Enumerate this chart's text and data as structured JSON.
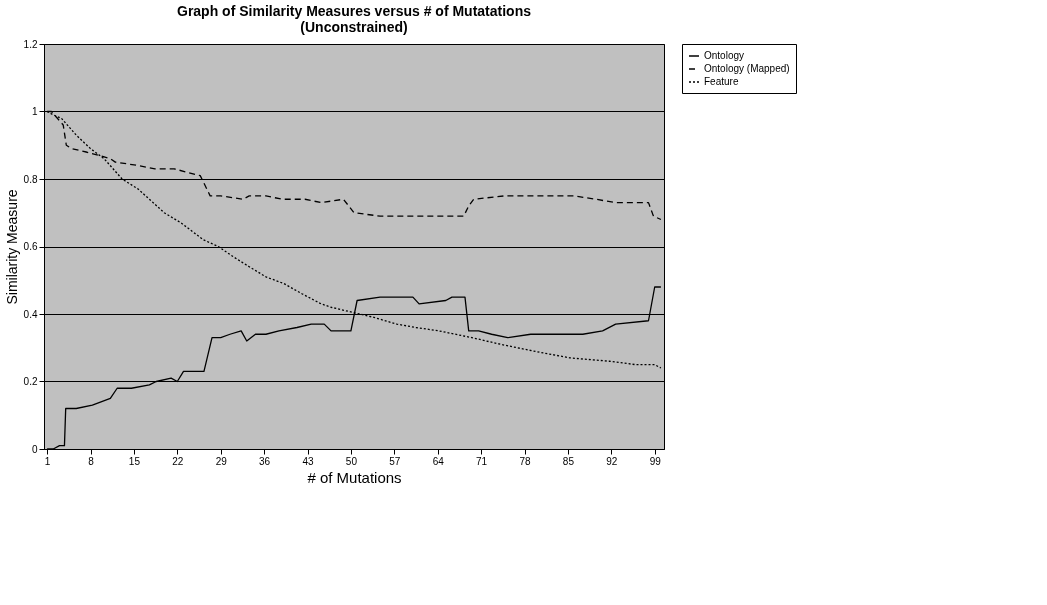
{
  "chart_data": {
    "type": "line",
    "title": "Graph of Similarity Measures versus # of Mutatations\n(Unconstrained)",
    "xlabel": "# of Mutations",
    "ylabel": "Similarity Measure",
    "xlim": [
      0.5,
      100.5
    ],
    "xticks": [
      1,
      8,
      15,
      22,
      29,
      36,
      43,
      50,
      57,
      64,
      71,
      78,
      85,
      92,
      99
    ],
    "ylim": [
      0,
      1.2
    ],
    "yticks": [
      0,
      0.2,
      0.4,
      0.6,
      0.8,
      1,
      1.2
    ],
    "grid": "y",
    "legend": "right",
    "marker": "none",
    "series": [
      {
        "name": "Ontology",
        "color": "#000000",
        "line_style": "solid",
        "x": [
          1,
          2,
          3,
          3.8,
          4,
          5.7,
          8.3,
          11.2,
          12.3,
          14.6,
          17.5,
          18.6,
          21,
          22,
          23,
          26.3,
          27.6,
          29,
          30.5,
          32.3,
          33.2,
          34.6,
          36.3,
          38.4,
          41.3,
          43.6,
          45.7,
          46.8,
          49.4,
          50,
          51,
          54.7,
          60,
          61,
          65.3,
          66.3,
          68.4,
          69,
          70.6,
          72.7,
          75.3,
          79,
          87.4,
          90.6,
          92.7,
          98,
          99,
          100
        ],
        "values": [
          0,
          0,
          0.01,
          0.01,
          0.12,
          0.12,
          0.13,
          0.15,
          0.18,
          0.18,
          0.19,
          0.2,
          0.21,
          0.2,
          0.23,
          0.23,
          0.33,
          0.33,
          0.34,
          0.35,
          0.32,
          0.34,
          0.34,
          0.35,
          0.36,
          0.37,
          0.37,
          0.35,
          0.35,
          0.35,
          0.44,
          0.45,
          0.45,
          0.43,
          0.44,
          0.45,
          0.45,
          0.35,
          0.35,
          0.34,
          0.33,
          0.34,
          0.34,
          0.35,
          0.37,
          0.38,
          0.48,
          0.48
        ]
      },
      {
        "name": "Ontology (Mapped)",
        "color": "#000000",
        "line_style": "dashed",
        "x": [
          1,
          1.7,
          3.6,
          4.1,
          5,
          7.3,
          9.4,
          11.2,
          12,
          15.7,
          18.4,
          21.5,
          23.6,
          25.7,
          27.3,
          29,
          32.6,
          33.6,
          36.3,
          38.9,
          42.6,
          45.2,
          48.8,
          50.5,
          54.7,
          60.5,
          68.2,
          69,
          69.8,
          74.8,
          84.3,
          85.9,
          89.5,
          92.7,
          98,
          98.8,
          100
        ],
        "values": [
          1,
          1,
          0.96,
          0.9,
          0.89,
          0.88,
          0.87,
          0.86,
          0.85,
          0.84,
          0.83,
          0.83,
          0.82,
          0.81,
          0.75,
          0.75,
          0.74,
          0.75,
          0.75,
          0.74,
          0.74,
          0.73,
          0.74,
          0.7,
          0.69,
          0.69,
          0.69,
          0.72,
          0.74,
          0.75,
          0.75,
          0.75,
          0.74,
          0.73,
          0.73,
          0.69,
          0.68
        ]
      },
      {
        "name": "Feature",
        "color": "#000000",
        "line_style": "dotted",
        "x": [
          1,
          2,
          3.3,
          5.7,
          8,
          10.2,
          13.1,
          15.7,
          19.9,
          22.6,
          26.2,
          28.6,
          31,
          33.6,
          36.3,
          39.2,
          42.1,
          45.2,
          46.8,
          53.7,
          57.4,
          60.5,
          64.2,
          69.5,
          74.2,
          79.5,
          85.3,
          91.7,
          95.9,
          99,
          100
        ],
        "values": [
          1,
          0.99,
          0.98,
          0.93,
          0.89,
          0.86,
          0.8,
          0.77,
          0.7,
          0.67,
          0.62,
          0.6,
          0.57,
          0.54,
          0.51,
          0.49,
          0.46,
          0.43,
          0.42,
          0.39,
          0.37,
          0.36,
          0.35,
          0.33,
          0.31,
          0.29,
          0.27,
          0.26,
          0.25,
          0.25,
          0.24
        ]
      }
    ]
  }
}
